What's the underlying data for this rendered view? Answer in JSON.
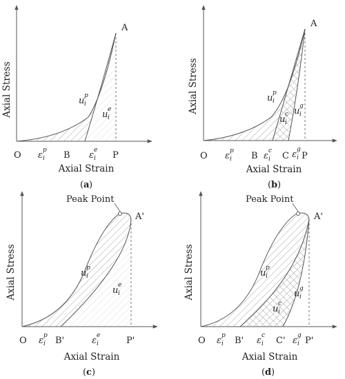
{
  "panels": [
    {
      "caption_letter": "a",
      "y_axis_label": "Axial Stress",
      "x_axis_label": "Axial Strain",
      "origin_label": "O",
      "peak_label": "A",
      "x_points": [
        "B",
        "P"
      ],
      "strain_symbols": [
        {
          "base": "ε",
          "sub": "i",
          "sup": "p"
        },
        {
          "base": "ε",
          "sub": "i",
          "sup": "e"
        }
      ],
      "energy_symbols": [
        {
          "base": "u",
          "sub": "i",
          "sup": "p"
        },
        {
          "base": "u",
          "sub": "i",
          "sup": "e"
        }
      ]
    },
    {
      "caption_letter": "b",
      "y_axis_label": "Axial Stress",
      "x_axis_label": "Axial Strain",
      "origin_label": "O",
      "peak_label": "A",
      "x_points": [
        "B",
        "C",
        "P"
      ],
      "strain_symbols": [
        {
          "base": "ε",
          "sub": "i",
          "sup": "p"
        },
        {
          "base": "ε",
          "sub": "i",
          "sup": "c"
        },
        {
          "base": "ε",
          "sub": "i",
          "sup": "g"
        }
      ],
      "energy_symbols": [
        {
          "base": "u",
          "sub": "i",
          "sup": "p"
        },
        {
          "base": "u",
          "sub": "i",
          "sup": "c"
        },
        {
          "base": "u",
          "sub": "i",
          "sup": "g"
        }
      ]
    },
    {
      "caption_letter": "c",
      "y_axis_label": "Axial Stress",
      "x_axis_label": "Axial Strain",
      "origin_label": "O",
      "peak_label": "A'",
      "peak_point_label": "Peak Point",
      "x_points": [
        "B'",
        "P'"
      ],
      "strain_symbols": [
        {
          "base": "ε",
          "sub": "i",
          "sup": "p"
        },
        {
          "base": "ε",
          "sub": "i",
          "sup": "e"
        }
      ],
      "energy_symbols": [
        {
          "base": "u",
          "sub": "i",
          "sup": "p"
        },
        {
          "base": "u",
          "sub": "i",
          "sup": "e"
        }
      ]
    },
    {
      "caption_letter": "d",
      "y_axis_label": "Axial Stress",
      "x_axis_label": "Axial Strain",
      "origin_label": "O",
      "peak_label": "A'",
      "peak_point_label": "Peak Point",
      "x_points": [
        "B'",
        "C'",
        "P'"
      ],
      "strain_symbols": [
        {
          "base": "ε",
          "sub": "i",
          "sup": "p"
        },
        {
          "base": "ε",
          "sub": "i",
          "sup": "c"
        },
        {
          "base": "ε",
          "sub": "i",
          "sup": "g"
        }
      ],
      "energy_symbols": [
        {
          "base": "u",
          "sub": "i",
          "sup": "p"
        },
        {
          "base": "u",
          "sub": "i",
          "sup": "c"
        },
        {
          "base": "u",
          "sub": "i",
          "sup": "g"
        }
      ]
    }
  ],
  "colors": {
    "line": "#555555",
    "hatch": "#8c8c8c",
    "text": "#222222"
  }
}
